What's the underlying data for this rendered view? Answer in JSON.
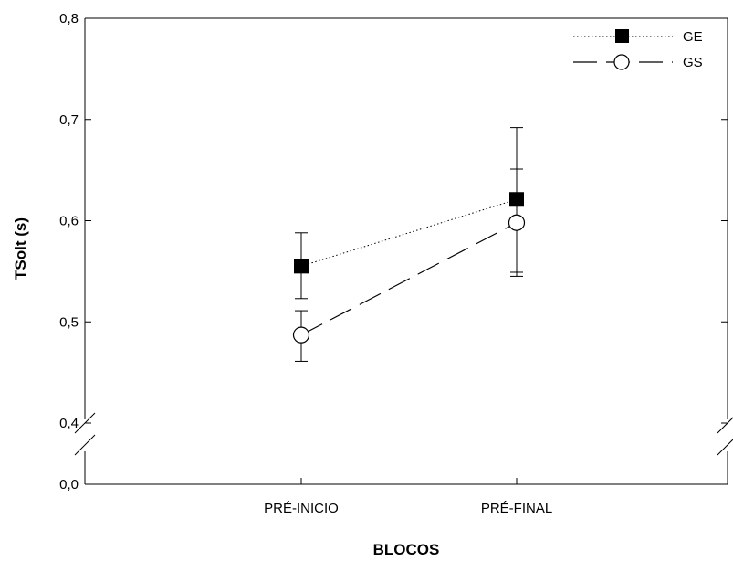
{
  "chart_data": {
    "type": "line",
    "title": "",
    "xlabel": "BLOCOS",
    "ylabel": "TSolt (s)",
    "categories": [
      "PRÉ-INICIO",
      "PRÉ-FINAL"
    ],
    "y_axis": {
      "broken": true,
      "lower_segment": [
        0.0,
        0.0
      ],
      "upper_segment": [
        0.4,
        0.8
      ],
      "ticks": [
        {
          "value": 0.0,
          "label": "0,0"
        },
        {
          "value": 0.4,
          "label": "0,4"
        },
        {
          "value": 0.5,
          "label": "0,5"
        },
        {
          "value": 0.6,
          "label": "0,6"
        },
        {
          "value": 0.7,
          "label": "0,7"
        },
        {
          "value": 0.8,
          "label": "0,8"
        }
      ]
    },
    "grid": false,
    "legend_position": "top-right",
    "series": [
      {
        "name": "GE",
        "marker": "filled-square",
        "line_style": "dotted",
        "color": "#000000",
        "values": [
          0.555,
          0.621
        ],
        "error_low": [
          0.523,
          0.549
        ],
        "error_high": [
          0.588,
          0.692
        ]
      },
      {
        "name": "GS",
        "marker": "open-circle",
        "line_style": "long-dash",
        "color": "#000000",
        "values": [
          0.487,
          0.598
        ],
        "error_low": [
          0.461,
          0.545
        ],
        "error_high": [
          0.511,
          0.651
        ]
      }
    ]
  }
}
